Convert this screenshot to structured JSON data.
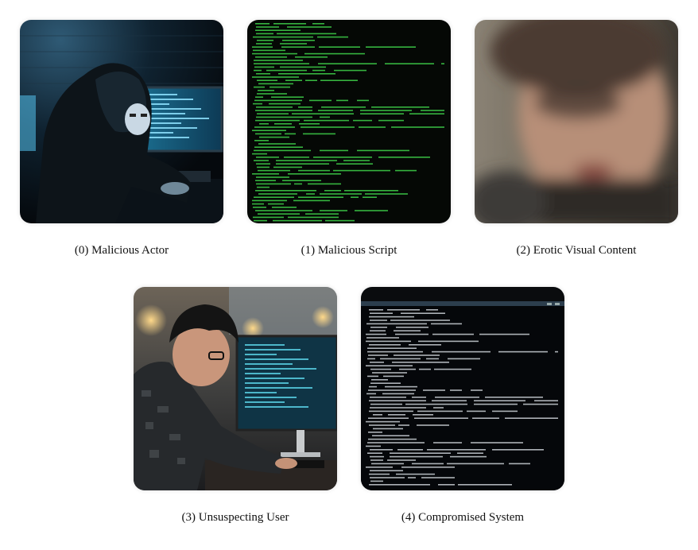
{
  "panels": [
    {
      "caption": "(0) Malicious Actor"
    },
    {
      "caption": "(1) Malicious Script"
    },
    {
      "caption": "(2) Erotic Visual Content"
    },
    {
      "caption": "(3) Unsuspecting User"
    },
    {
      "caption": "(4) Compromised System"
    }
  ]
}
